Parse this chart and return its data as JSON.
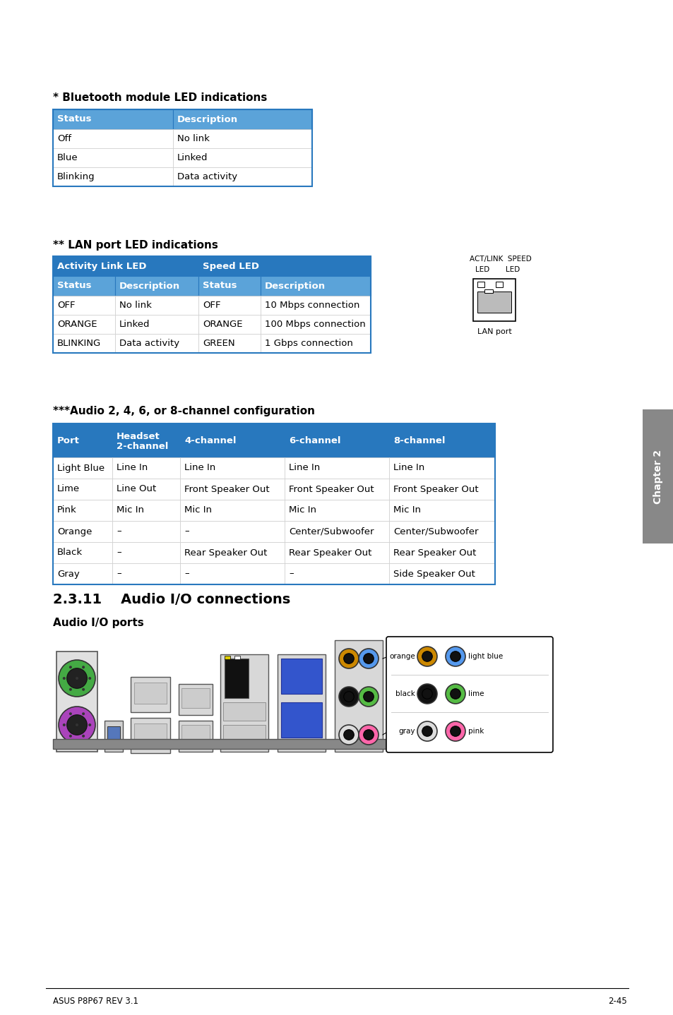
{
  "page_bg": "#ffffff",
  "bt_title": "* Bluetooth module LED indications",
  "bt_header": [
    "Status",
    "Description"
  ],
  "bt_rows": [
    [
      "Off",
      "No link"
    ],
    [
      "Blue",
      "Linked"
    ],
    [
      "Blinking",
      "Data activity"
    ]
  ],
  "lan_title": "** LAN port LED indications",
  "lan_header1": [
    "Activity Link LED",
    "Speed LED"
  ],
  "lan_header2": [
    "Status",
    "Description",
    "Status",
    "Description"
  ],
  "lan_rows": [
    [
      "OFF",
      "No link",
      "OFF",
      "10 Mbps connection"
    ],
    [
      "ORANGE",
      "Linked",
      "ORANGE",
      "100 Mbps connection"
    ],
    [
      "BLINKING",
      "Data activity",
      "GREEN",
      "1 Gbps connection"
    ]
  ],
  "audio_title": "***Audio 2, 4, 6, or 8-channel configuration",
  "audio_header": [
    "Port",
    "Headset\n2-channel",
    "4-channel",
    "6-channel",
    "8-channel"
  ],
  "audio_rows": [
    [
      "Light Blue",
      "Line In",
      "Line In",
      "Line In",
      "Line In"
    ],
    [
      "Lime",
      "Line Out",
      "Front Speaker Out",
      "Front Speaker Out",
      "Front Speaker Out"
    ],
    [
      "Pink",
      "Mic In",
      "Mic In",
      "Mic In",
      "Mic In"
    ],
    [
      "Orange",
      "–",
      "–",
      "Center/Subwoofer",
      "Center/Subwoofer"
    ],
    [
      "Black",
      "–",
      "Rear Speaker Out",
      "Rear Speaker Out",
      "Rear Speaker Out"
    ],
    [
      "Gray",
      "–",
      "–",
      "–",
      "Side Speaker Out"
    ]
  ],
  "section_title": "2.3.11    Audio I/O connections",
  "section_sub": "Audio I/O ports",
  "header_color": "#2878BE",
  "header_color2": "#5BA3D9",
  "header_text_color": "#ffffff",
  "border_color": "#2878BE",
  "row_line_color": "#cccccc",
  "text_color": "#000000",
  "chapter_label": "Chapter 2",
  "footer_left": "ASUS P8P67 REV 3.1",
  "footer_right": "2-45"
}
